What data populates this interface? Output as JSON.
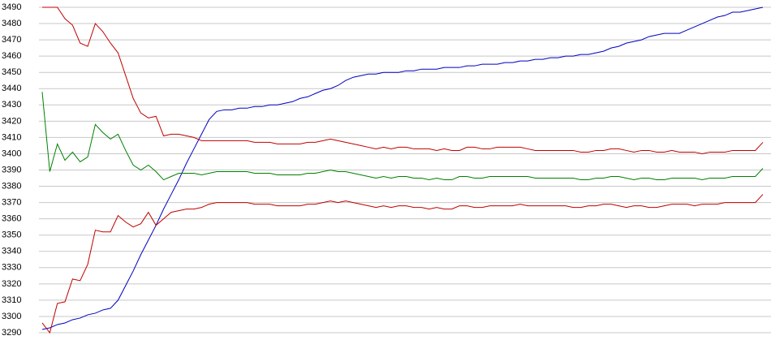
{
  "chart_data": {
    "type": "line",
    "categories": [
      null,
      null,
      null,
      null,
      null,
      null,
      null,
      null,
      null,
      null,
      null,
      null,
      null,
      null,
      null,
      null,
      null,
      null,
      null,
      null,
      null,
      null,
      null,
      null,
      null,
      null,
      null,
      null,
      null,
      null,
      null,
      null,
      null,
      null,
      null,
      null,
      null,
      null,
      null,
      null,
      null,
      null,
      null,
      null,
      null,
      null,
      null,
      null,
      null,
      null,
      null,
      null,
      null,
      null,
      null,
      null,
      null,
      null,
      null,
      null,
      null,
      null,
      null,
      null,
      null,
      null,
      null,
      null,
      null,
      null,
      null,
      null,
      null,
      null,
      null,
      null,
      null,
      null,
      null,
      null,
      null,
      null,
      null,
      null,
      null,
      null,
      null,
      null,
      null,
      null,
      null,
      null,
      null,
      null,
      null,
      null
    ],
    "series": [
      {
        "color": "#0000c0",
        "values": [
          3292,
          3293,
          3295,
          3296,
          3298,
          3299,
          3301,
          3302,
          3304,
          3305,
          3310,
          3319,
          3328,
          3338,
          3347,
          3356,
          3366,
          3375,
          3384,
          3394,
          3403,
          3412,
          3421,
          3426,
          3427,
          3427,
          3428,
          3428,
          3429,
          3429,
          3430,
          3430,
          3431,
          3432,
          3434,
          3435,
          3437,
          3439,
          3440,
          3442,
          3445,
          3447,
          3448,
          3449,
          3449,
          3450,
          3450,
          3450,
          3451,
          3451,
          3452,
          3452,
          3452,
          3453,
          3453,
          3453,
          3454,
          3454,
          3455,
          3455,
          3455,
          3456,
          3456,
          3457,
          3457,
          3458,
          3458,
          3459,
          3459,
          3460,
          3460,
          3461,
          3461,
          3462,
          3463,
          3465,
          3466,
          3468,
          3469,
          3470,
          3472,
          3473,
          3474,
          3474,
          3474,
          3476,
          3478,
          3480,
          3482,
          3484,
          3485,
          3487,
          3487,
          3488,
          3489,
          3490
        ]
      },
      {
        "color": "#c00000",
        "values": [
          3490,
          3490,
          3490,
          3483,
          3479,
          3468,
          3466,
          3480,
          3475,
          3468,
          3462,
          3448,
          3434,
          3425,
          3422,
          3423,
          3411,
          3412,
          3412,
          3411,
          3410,
          3408,
          3408,
          3408,
          3408,
          3408,
          3408,
          3408,
          3407,
          3407,
          3407,
          3406,
          3406,
          3406,
          3406,
          3407,
          3407,
          3408,
          3409,
          3408,
          3407,
          3406,
          3405,
          3404,
          3403,
          3404,
          3403,
          3404,
          3404,
          3403,
          3403,
          3403,
          3402,
          3403,
          3402,
          3402,
          3404,
          3404,
          3403,
          3403,
          3404,
          3404,
          3404,
          3404,
          3403,
          3402,
          3402,
          3402,
          3402,
          3402,
          3402,
          3401,
          3401,
          3402,
          3402,
          3403,
          3403,
          3402,
          3401,
          3402,
          3402,
          3401,
          3401,
          3402,
          3401,
          3401,
          3401,
          3400,
          3401,
          3401,
          3401,
          3402,
          3402,
          3402,
          3402,
          3407
        ]
      },
      {
        "color": "#008000",
        "values": [
          3438,
          3389,
          3406,
          3396,
          3401,
          3395,
          3398,
          3418,
          3413,
          3409,
          3412,
          3402,
          3393,
          3390,
          3393,
          3389,
          3384,
          3386,
          3388,
          3388,
          3388,
          3387,
          3388,
          3389,
          3389,
          3389,
          3389,
          3389,
          3388,
          3388,
          3388,
          3387,
          3387,
          3387,
          3387,
          3388,
          3388,
          3389,
          3390,
          3389,
          3389,
          3388,
          3387,
          3386,
          3385,
          3386,
          3385,
          3386,
          3386,
          3385,
          3385,
          3384,
          3385,
          3384,
          3384,
          3386,
          3386,
          3385,
          3385,
          3386,
          3386,
          3386,
          3386,
          3386,
          3386,
          3385,
          3385,
          3385,
          3385,
          3385,
          3385,
          3384,
          3384,
          3385,
          3385,
          3386,
          3386,
          3385,
          3384,
          3385,
          3385,
          3384,
          3384,
          3385,
          3385,
          3385,
          3385,
          3384,
          3385,
          3385,
          3385,
          3386,
          3386,
          3386,
          3386,
          3391
        ]
      },
      {
        "color": "#c00000",
        "values": [
          3296,
          3290,
          3308,
          3309,
          3323,
          3322,
          3332,
          3353,
          3352,
          3352,
          3362,
          3358,
          3355,
          3357,
          3364,
          3356,
          3360,
          3364,
          3365,
          3366,
          3366,
          3367,
          3369,
          3370,
          3370,
          3370,
          3370,
          3370,
          3369,
          3369,
          3369,
          3368,
          3368,
          3368,
          3368,
          3369,
          3369,
          3370,
          3371,
          3370,
          3371,
          3370,
          3369,
          3368,
          3367,
          3368,
          3367,
          3368,
          3368,
          3367,
          3367,
          3366,
          3367,
          3366,
          3366,
          3368,
          3368,
          3367,
          3367,
          3368,
          3368,
          3368,
          3368,
          3369,
          3368,
          3368,
          3368,
          3368,
          3368,
          3368,
          3367,
          3367,
          3368,
          3368,
          3369,
          3369,
          3368,
          3367,
          3368,
          3368,
          3367,
          3367,
          3368,
          3369,
          3369,
          3369,
          3368,
          3369,
          3369,
          3369,
          3370,
          3370,
          3370,
          3370,
          3370,
          3375
        ]
      }
    ],
    "ylim": [
      3290,
      3490
    ],
    "yticks": [
      3290,
      3300,
      3310,
      3320,
      3330,
      3340,
      3350,
      3360,
      3370,
      3380,
      3390,
      3400,
      3410,
      3420,
      3430,
      3440,
      3450,
      3460,
      3470,
      3480,
      3490
    ],
    "grid": true
  }
}
